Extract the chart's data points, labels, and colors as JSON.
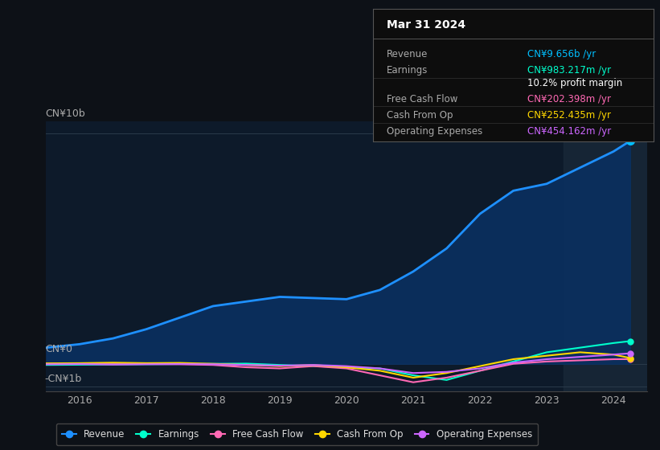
{
  "background_color": "#0d1117",
  "plot_bg_color": "#0d1a2a",
  "title": "Mar 31 2024",
  "info_box_rows": [
    {
      "label": "Revenue",
      "value": "CN¥9.656b /yr",
      "value_color": "#00bfff"
    },
    {
      "label": "Earnings",
      "value": "CN¥983.217m /yr",
      "value_color": "#00ffcc"
    },
    {
      "label": "",
      "value": "10.2% profit margin",
      "value_color": "#ffffff"
    },
    {
      "label": "Free Cash Flow",
      "value": "CN¥202.398m /yr",
      "value_color": "#ff69b4"
    },
    {
      "label": "Cash From Op",
      "value": "CN¥252.435m /yr",
      "value_color": "#ffd700"
    },
    {
      "label": "Operating Expenses",
      "value": "CN¥454.162m /yr",
      "value_color": "#cc66ff"
    }
  ],
  "ylabel_top": "CN¥10b",
  "ylabel_zero": "CN¥0",
  "ylabel_neg": "-CN¥1b",
  "xlim": [
    2015.5,
    2024.5
  ],
  "ylim_min": -1200000000,
  "ylim_max": 10500000000,
  "highlight_x_start": 2023.25,
  "highlight_x_end": 2024.5,
  "revenue_color": "#1e90ff",
  "revenue_fill_color": "#0a3060",
  "revenue_marker_color": "#00bfff",
  "earnings_color": "#00ffcc",
  "free_cash_flow_color": "#ff69b4",
  "cash_from_op_color": "#ffd700",
  "operating_expenses_color": "#cc66ff",
  "years": [
    2015.5,
    2016.0,
    2016.5,
    2017.0,
    2017.5,
    2018.0,
    2018.5,
    2019.0,
    2019.5,
    2020.0,
    2020.5,
    2021.0,
    2021.5,
    2022.0,
    2022.5,
    2023.0,
    2023.5,
    2024.0,
    2024.25
  ],
  "revenue": [
    700000000,
    850000000,
    1100000000,
    1500000000,
    2000000000,
    2500000000,
    2700000000,
    2900000000,
    2850000000,
    2800000000,
    3200000000,
    4000000000,
    5000000000,
    6500000000,
    7500000000,
    7800000000,
    8500000000,
    9200000000,
    9656000000
  ],
  "earnings": [
    -50000000,
    -40000000,
    -30000000,
    -20000000,
    -10000000,
    0,
    10000000,
    -50000000,
    -100000000,
    -150000000,
    -200000000,
    -500000000,
    -700000000,
    -300000000,
    100000000,
    500000000,
    700000000,
    900000000,
    983000000
  ],
  "free_cash_flow": [
    10000000,
    0,
    -20000000,
    -10000000,
    -20000000,
    -50000000,
    -150000000,
    -200000000,
    -100000000,
    -200000000,
    -500000000,
    -800000000,
    -600000000,
    -300000000,
    0,
    100000000,
    150000000,
    200000000,
    202000000
  ],
  "cash_from_op": [
    20000000,
    30000000,
    50000000,
    30000000,
    40000000,
    0,
    -50000000,
    -100000000,
    -50000000,
    -150000000,
    -300000000,
    -600000000,
    -400000000,
    -100000000,
    200000000,
    350000000,
    500000000,
    400000000,
    252000000
  ],
  "operating_expenses": [
    -20000000,
    -10000000,
    -30000000,
    -20000000,
    -10000000,
    -20000000,
    -50000000,
    -80000000,
    -50000000,
    -100000000,
    -200000000,
    -400000000,
    -350000000,
    -200000000,
    50000000,
    200000000,
    300000000,
    400000000,
    454000000
  ],
  "legend": [
    {
      "label": "Revenue",
      "color": "#1e90ff"
    },
    {
      "label": "Earnings",
      "color": "#00ffcc"
    },
    {
      "label": "Free Cash Flow",
      "color": "#ff69b4"
    },
    {
      "label": "Cash From Op",
      "color": "#ffd700"
    },
    {
      "label": "Operating Expenses",
      "color": "#cc66ff"
    }
  ]
}
